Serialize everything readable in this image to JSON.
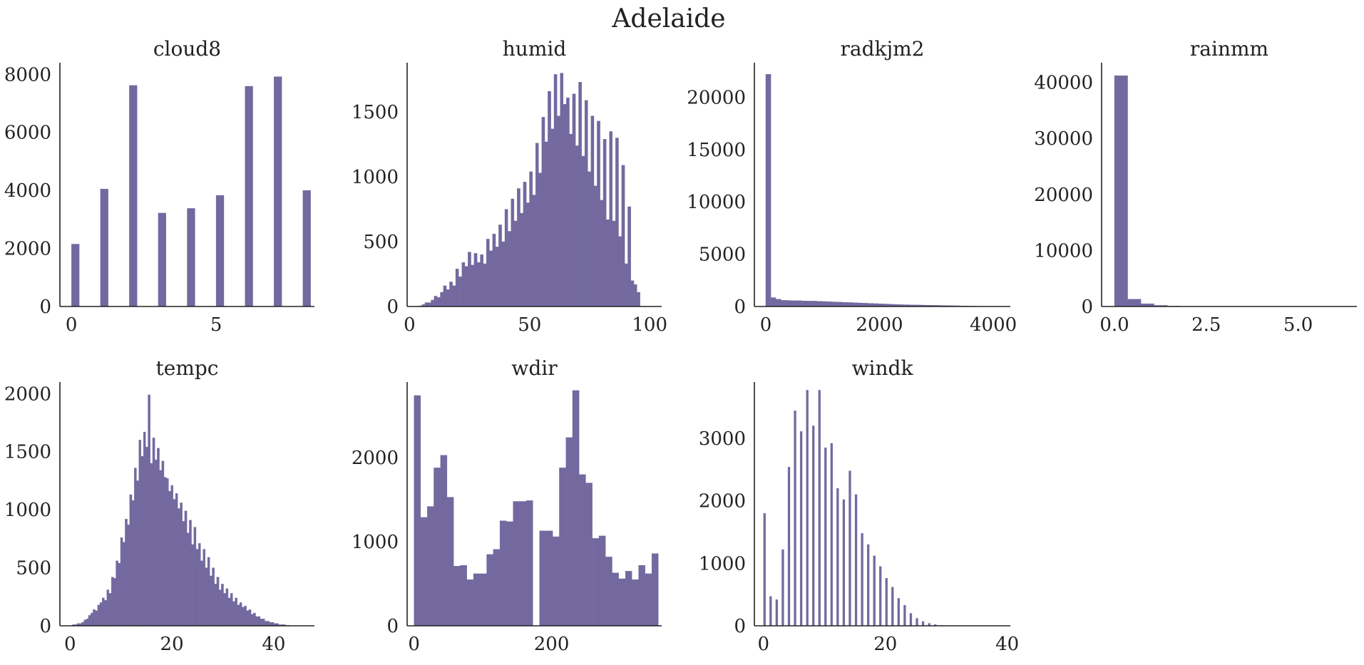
{
  "figure": {
    "title": "Adelaide",
    "bar_color": "#73699f",
    "axis_color": "#222222"
  },
  "chart_data": [
    {
      "type": "bar",
      "title": "cloud8",
      "xlim": [
        -0.4,
        8.4
      ],
      "ylim": [
        0,
        8400
      ],
      "xticks": [
        0,
        5
      ],
      "xtick_labels": [
        "0",
        "5"
      ],
      "yticks": [
        0,
        2000,
        4000,
        6000,
        8000
      ],
      "ytick_labels": [
        "0",
        "2000",
        "4000",
        "6000",
        "8000"
      ],
      "bins": [
        [
          0,
          0.27,
          2150
        ],
        [
          1,
          1.27,
          4050
        ],
        [
          2,
          2.27,
          7620
        ],
        [
          3,
          3.27,
          3220
        ],
        [
          4,
          4.27,
          3380
        ],
        [
          5,
          5.27,
          3830
        ],
        [
          6,
          6.27,
          7590
        ],
        [
          7,
          7.27,
          7920
        ],
        [
          8,
          8.27,
          4000
        ]
      ]
    },
    {
      "type": "bar",
      "title": "humid",
      "xlim": [
        -1,
        105
      ],
      "ylim": [
        0,
        1880
      ],
      "xticks": [
        0,
        50,
        100
      ],
      "xtick_labels": [
        "0",
        "50",
        "100"
      ],
      "yticks": [
        0,
        500,
        1000,
        1500
      ],
      "ytick_labels": [
        "0",
        "500",
        "1000",
        "1500"
      ],
      "heights": [
        0,
        0,
        0,
        5,
        15,
        30,
        30,
        50,
        80,
        70,
        110,
        160,
        130,
        190,
        160,
        290,
        230,
        340,
        310,
        420,
        320,
        410,
        340,
        400,
        330,
        520,
        430,
        560,
        460,
        630,
        500,
        750,
        580,
        830,
        660,
        910,
        720,
        960,
        800,
        1040,
        860,
        1260,
        1030,
        1460,
        1270,
        1660,
        1370,
        1790,
        1470,
        1800,
        1560,
        1610,
        1330,
        1640,
        1240,
        1730,
        1160,
        1590,
        1040,
        1470,
        930,
        1430,
        820,
        1290,
        670,
        1350,
        660,
        1300,
        540,
        1090,
        330,
        770,
        200,
        170,
        110,
        0,
        0,
        0
      ],
      "bin_start": 0,
      "bin_width": 1.28
    },
    {
      "type": "bar",
      "title": "radkjm2",
      "xlim": [
        -200,
        4300
      ],
      "ylim": [
        0,
        23300
      ],
      "xticks": [
        0,
        2000,
        4000
      ],
      "xtick_labels": [
        "0",
        "2000",
        "4000"
      ],
      "yticks": [
        0,
        5000,
        10000,
        15000,
        20000
      ],
      "ytick_labels": [
        "0",
        "5000",
        "10000",
        "15000",
        "20000"
      ],
      "heights": [
        22200,
        850,
        700,
        600,
        580,
        560,
        560,
        540,
        530,
        520,
        500,
        480,
        460,
        440,
        420,
        400,
        380,
        360,
        340,
        320,
        300,
        280,
        260,
        240,
        220,
        200,
        180,
        170,
        160,
        150,
        140,
        130,
        120,
        110,
        100,
        90,
        80,
        70,
        60,
        50,
        40,
        30,
        20,
        10,
        5,
        0
      ],
      "bin_start": 0,
      "bin_width": 90
    },
    {
      "type": "bar",
      "title": "rainmm",
      "xlim": [
        -0.35,
        6.6
      ],
      "ylim": [
        0,
        43500
      ],
      "xticks": [
        0,
        2.5,
        5
      ],
      "xtick_labels": [
        "0.0",
        "2.5",
        "5.0"
      ],
      "yticks": [
        0,
        10000,
        20000,
        30000,
        40000
      ],
      "ytick_labels": [
        "0",
        "10000",
        "20000",
        "30000",
        "40000"
      ],
      "heights": [
        41200,
        1300,
        500,
        200,
        80,
        40,
        20,
        10,
        5,
        3,
        2,
        1,
        1,
        1,
        1,
        0,
        0,
        0,
        0,
        0,
        0
      ],
      "bin_start": 0,
      "bin_width": 0.36
    },
    {
      "type": "bar",
      "title": "tempc",
      "xlim": [
        -2,
        48
      ],
      "ylim": [
        0,
        2100
      ],
      "xticks": [
        0,
        20,
        40
      ],
      "xtick_labels": [
        "0",
        "20",
        "40"
      ],
      "yticks": [
        0,
        500,
        1000,
        1500,
        2000
      ],
      "ytick_labels": [
        "0",
        "500",
        "1000",
        "1500",
        "2000"
      ],
      "heights": [
        0,
        10,
        10,
        20,
        20,
        30,
        50,
        60,
        90,
        110,
        140,
        130,
        180,
        200,
        240,
        220,
        310,
        280,
        420,
        410,
        560,
        540,
        760,
        720,
        920,
        870,
        1130,
        1080,
        1360,
        1250,
        1600,
        1460,
        1670,
        1540,
        1990,
        1400,
        1620,
        1430,
        1530,
        1340,
        1420,
        1280,
        1270,
        1160,
        1210,
        1090,
        1140,
        1010,
        1060,
        900,
        990,
        800,
        910,
        700,
        850,
        660,
        710,
        560,
        660,
        500,
        590,
        430,
        500,
        360,
        420,
        310,
        360,
        280,
        320,
        240,
        280,
        210,
        240,
        180,
        200,
        160,
        170,
        130,
        140,
        100,
        110,
        80,
        80,
        60,
        60,
        40,
        40,
        30,
        30,
        20,
        20,
        10,
        10,
        10,
        5,
        5,
        0,
        0
      ],
      "bin_start": 0,
      "bin_width": 0.45
    },
    {
      "type": "bar",
      "title": "wdir",
      "xlim": [
        -10,
        360
      ],
      "ylim": [
        0,
        2900
      ],
      "xticks": [
        0,
        200
      ],
      "xtick_labels": [
        "0",
        "200"
      ],
      "yticks": [
        0,
        1000,
        2000
      ],
      "ytick_labels": [
        "0",
        "1000",
        "2000"
      ],
      "heights": [
        2740,
        1290,
        1420,
        1880,
        2030,
        1530,
        710,
        720,
        550,
        620,
        620,
        850,
        910,
        1250,
        1240,
        1480,
        1480,
        1490,
        0,
        1130,
        1130,
        1060,
        1880,
        2240,
        2800,
        1800,
        1700,
        1040,
        1070,
        820,
        630,
        560,
        650,
        550,
        720,
        620,
        860
      ],
      "bin_start": 0,
      "bin_width": 9.6
    },
    {
      "type": "bar",
      "title": "windk",
      "xlim": [
        -1.5,
        40.5
      ],
      "ylim": [
        0,
        3900
      ],
      "xticks": [
        0,
        20,
        40
      ],
      "xtick_labels": [
        "0",
        "20",
        "40"
      ],
      "yticks": [
        0,
        1000,
        2000,
        3000
      ],
      "ytick_labels": [
        "0",
        "1000",
        "2000",
        "3000"
      ],
      "bins": [
        [
          0,
          0.35,
          1800
        ],
        [
          1,
          1.35,
          470
        ],
        [
          2,
          2.35,
          420
        ],
        [
          3,
          3.35,
          1220
        ],
        [
          4,
          4.35,
          2540
        ],
        [
          5,
          5.35,
          3440
        ],
        [
          6,
          6.35,
          3110
        ],
        [
          7,
          7.35,
          3770
        ],
        [
          8,
          8.35,
          3200
        ],
        [
          9,
          9.35,
          3770
        ],
        [
          10,
          10.35,
          2850
        ],
        [
          11,
          11.35,
          2920
        ],
        [
          12,
          12.35,
          2200
        ],
        [
          13,
          13.35,
          2020
        ],
        [
          14,
          14.35,
          2480
        ],
        [
          15,
          15.35,
          2100
        ],
        [
          16,
          16.35,
          1480
        ],
        [
          17,
          17.35,
          1300
        ],
        [
          18,
          18.35,
          1120
        ],
        [
          19,
          19.35,
          950
        ],
        [
          20,
          20.35,
          760
        ],
        [
          21,
          21.35,
          620
        ],
        [
          22,
          22.35,
          440
        ],
        [
          23,
          23.35,
          330
        ],
        [
          24,
          24.35,
          200
        ],
        [
          25,
          25.35,
          120
        ],
        [
          26,
          26.35,
          70
        ],
        [
          27,
          27.35,
          40
        ],
        [
          28,
          28.35,
          20
        ],
        [
          29,
          29.35,
          10
        ],
        [
          30,
          30.35,
          5
        ]
      ]
    }
  ]
}
